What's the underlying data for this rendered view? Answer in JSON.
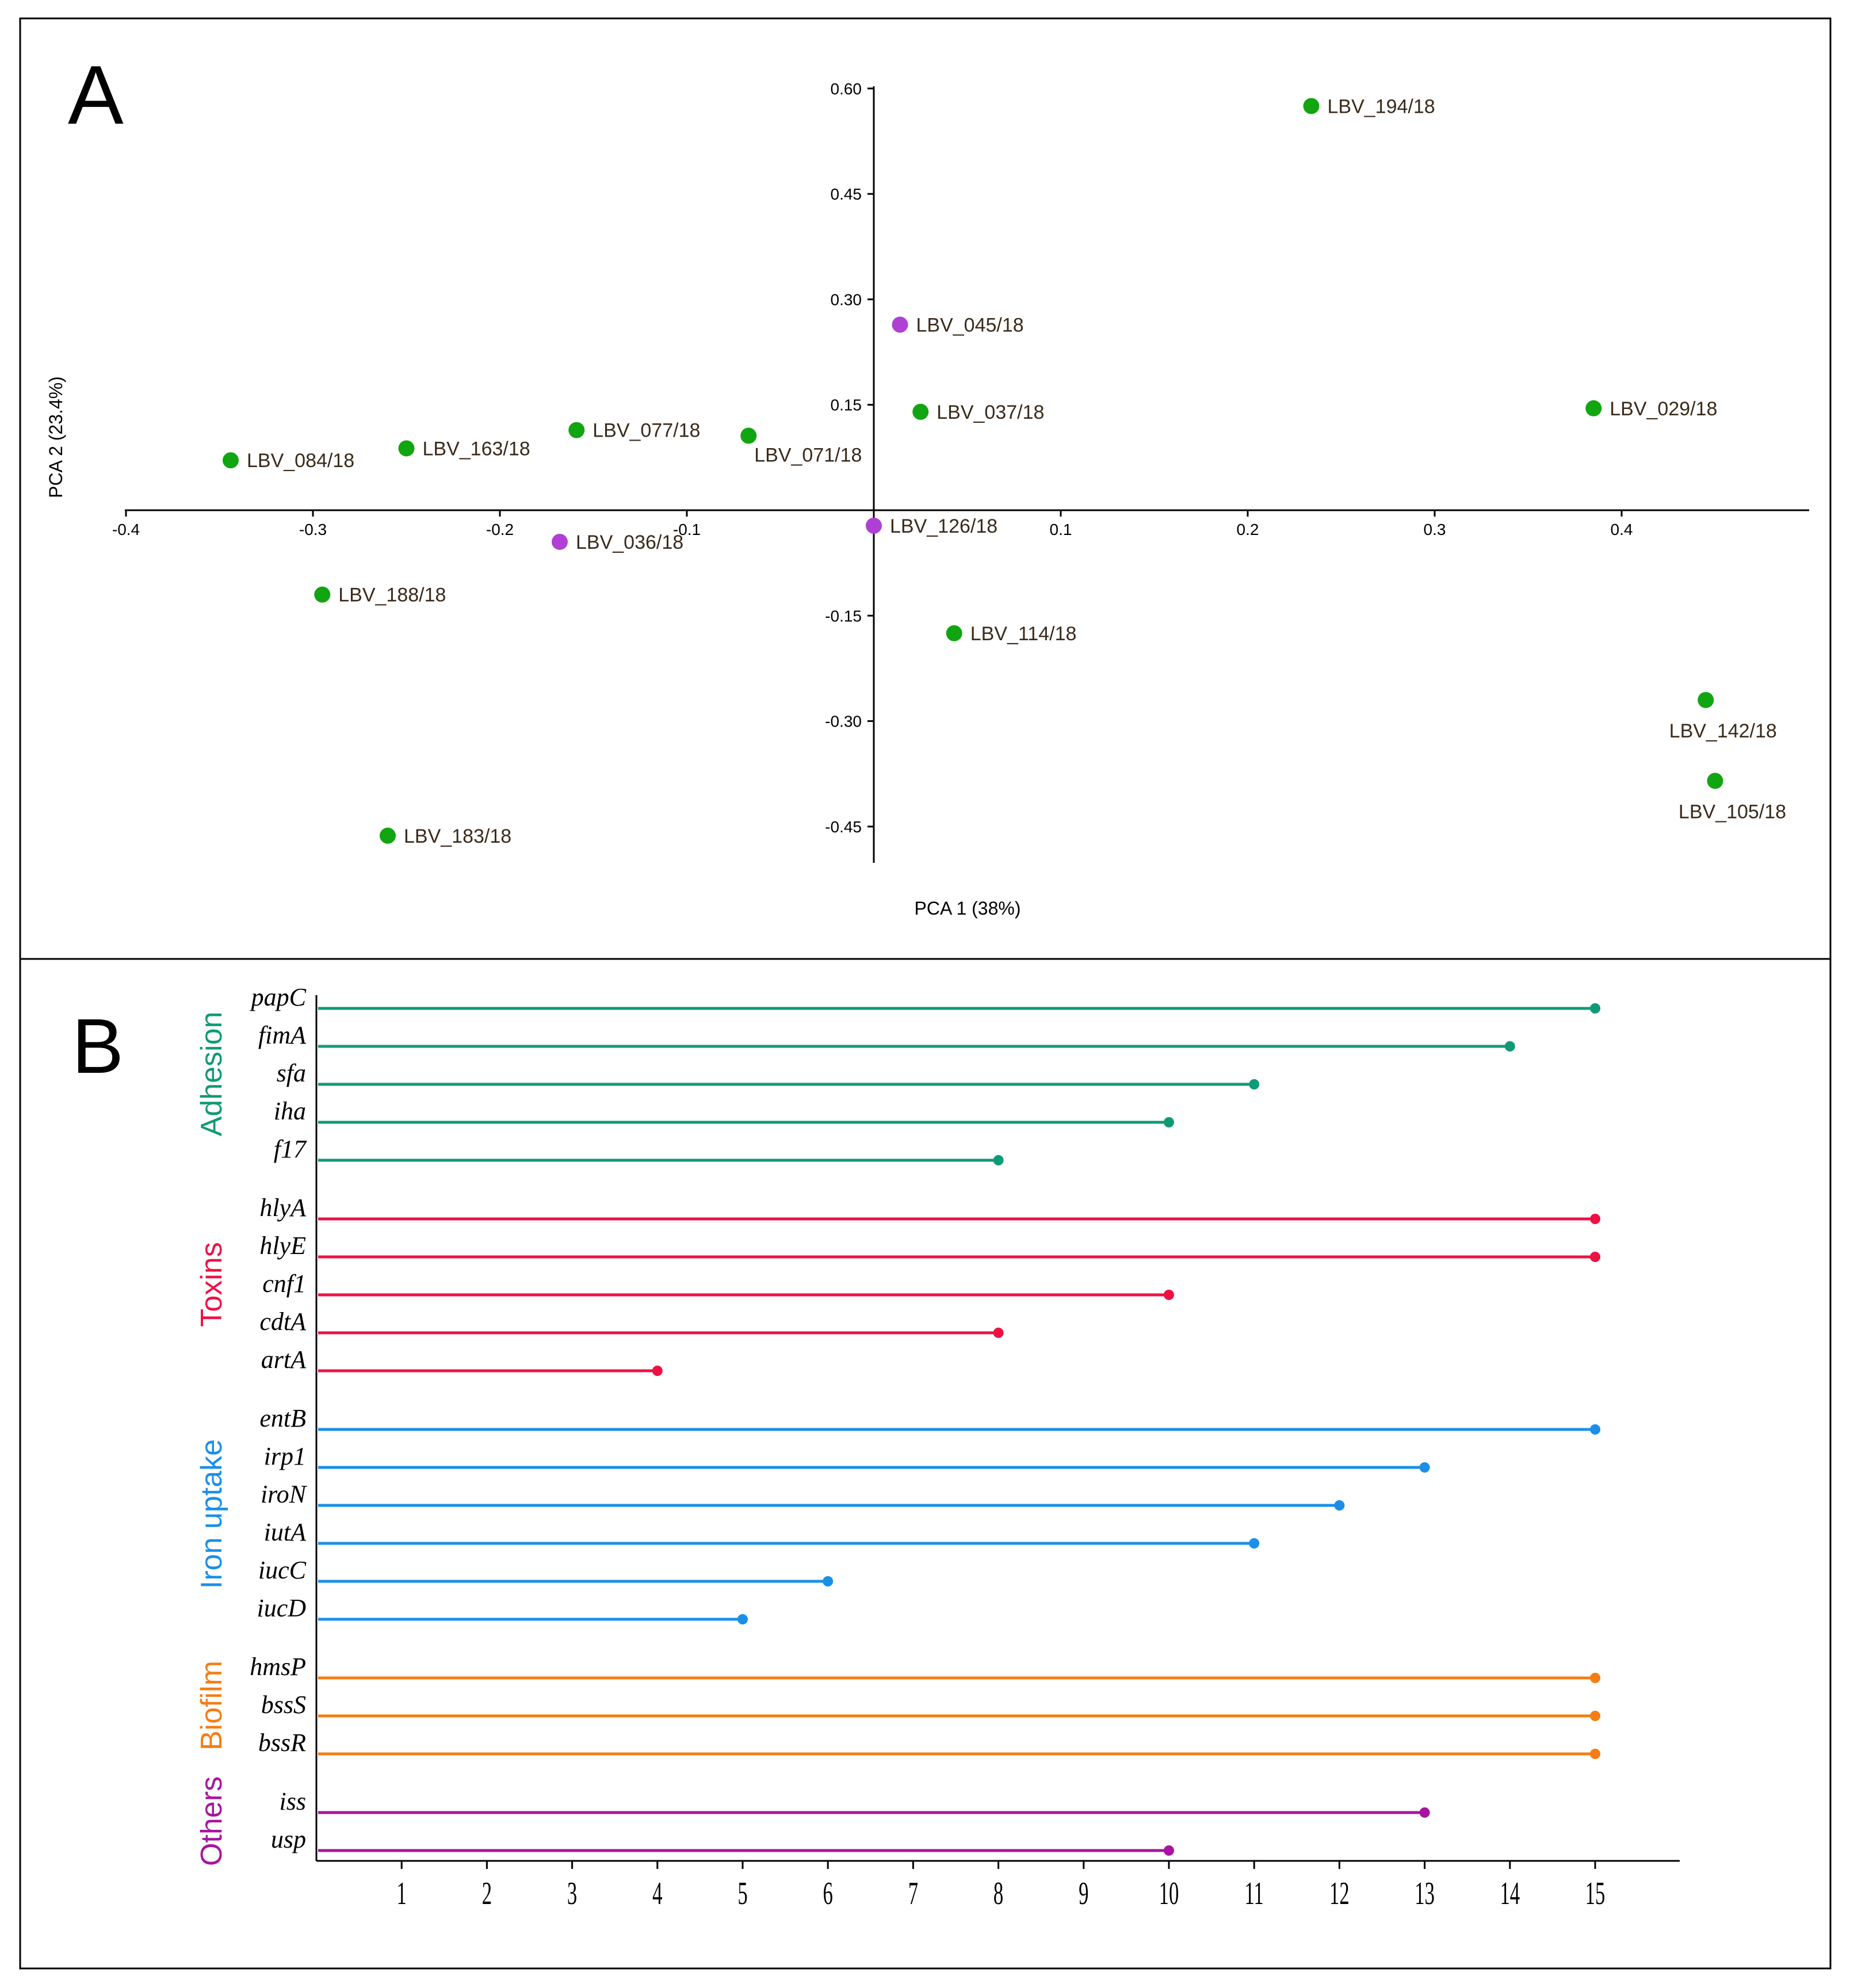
{
  "chart_data": [
    {
      "type": "scatter",
      "panel_label": "A",
      "xlabel": "PCA 1 (38%)",
      "ylabel": "PCA 2 (23.4%)",
      "xlim": [
        -0.4,
        0.5
      ],
      "ylim": [
        -0.5,
        0.6
      ],
      "x_ticks": [
        -0.4,
        -0.3,
        -0.2,
        -0.1,
        0.1,
        0.2,
        0.3,
        0.4
      ],
      "x_tick_labels": [
        "-0.4",
        "-0.3",
        "-0.2",
        "-0.1",
        "0.1",
        "0.2",
        "0.3",
        "0.4"
      ],
      "y_ticks": [
        0.6,
        0.45,
        0.3,
        0.15,
        -0.15,
        -0.3,
        -0.45
      ],
      "y_tick_labels": [
        "0.60",
        "0.45",
        "0.30",
        "0.15",
        "-0.15",
        "-0.30",
        "-0.45"
      ],
      "colors": {
        "green": "#11a511",
        "purple": "#b03fd6"
      },
      "points": [
        {
          "label": "LBV_194/18",
          "x": 0.234,
          "y": 0.575,
          "color": "green",
          "pos": "right"
        },
        {
          "label": "LBV_045/18",
          "x": 0.014,
          "y": 0.264,
          "color": "purple",
          "pos": "right"
        },
        {
          "label": "LBV_029/18",
          "x": 0.385,
          "y": 0.145,
          "color": "green",
          "pos": "right"
        },
        {
          "label": "LBV_037/18",
          "x": 0.025,
          "y": 0.14,
          "color": "green",
          "pos": "right"
        },
        {
          "label": "LBV_077/18",
          "x": -0.159,
          "y": 0.114,
          "color": "green",
          "pos": "right"
        },
        {
          "label": "LBV_071/18",
          "x": -0.067,
          "y": 0.106,
          "color": "green",
          "pos": "below-right"
        },
        {
          "label": "LBV_163/18",
          "x": -0.25,
          "y": 0.088,
          "color": "green",
          "pos": "right"
        },
        {
          "label": "LBV_084/18",
          "x": -0.344,
          "y": 0.071,
          "color": "green",
          "pos": "right"
        },
        {
          "label": "LBV_126/18",
          "x": 0.0,
          "y": -0.022,
          "color": "purple",
          "pos": "right"
        },
        {
          "label": "LBV_036/18",
          "x": -0.168,
          "y": -0.045,
          "color": "purple",
          "pos": "right"
        },
        {
          "label": "LBV_188/18",
          "x": -0.295,
          "y": -0.12,
          "color": "green",
          "pos": "right"
        },
        {
          "label": "LBV_114/18",
          "x": 0.043,
          "y": -0.175,
          "color": "green",
          "pos": "right"
        },
        {
          "label": "LBV_142/18",
          "x": 0.445,
          "y": -0.27,
          "color": "green",
          "pos": "below"
        },
        {
          "label": "LBV_105/18",
          "x": 0.45,
          "y": -0.385,
          "color": "green",
          "pos": "below"
        },
        {
          "label": "LBV_183/18",
          "x": -0.26,
          "y": -0.463,
          "color": "green",
          "pos": "right"
        }
      ]
    },
    {
      "type": "bar",
      "orientation": "horizontal-lollipop",
      "panel_label": "B",
      "xlim": [
        0,
        16
      ],
      "x_ticks": [
        "1",
        "2",
        "3",
        "4",
        "5",
        "6",
        "7",
        "8",
        "9",
        "10",
        "11",
        "12",
        "13",
        "14",
        "15"
      ],
      "groups": [
        {
          "name": "Adhesion",
          "color": "#0f9a77",
          "genes": [
            {
              "gene": "papC",
              "value": 15
            },
            {
              "gene": "fimA",
              "value": 14
            },
            {
              "gene": "sfa",
              "value": 11
            },
            {
              "gene": "iha",
              "value": 10
            },
            {
              "gene": "f17",
              "value": 8
            }
          ]
        },
        {
          "name": "Toxins",
          "color": "#ee1144",
          "genes": [
            {
              "gene": "hlyA",
              "value": 15
            },
            {
              "gene": "hlyE",
              "value": 15
            },
            {
              "gene": "cnf1",
              "value": 10
            },
            {
              "gene": "cdtA",
              "value": 8
            },
            {
              "gene": "artA",
              "value": 4
            }
          ]
        },
        {
          "name": "Iron uptake",
          "color": "#1a8fe8",
          "genes": [
            {
              "gene": "entB",
              "value": 15
            },
            {
              "gene": "irp1",
              "value": 13
            },
            {
              "gene": "iroN",
              "value": 12
            },
            {
              "gene": "iutA",
              "value": 11
            },
            {
              "gene": "iucC",
              "value": 6
            },
            {
              "gene": "iucD",
              "value": 5
            }
          ]
        },
        {
          "name": "Biofilm",
          "color": "#f47d14",
          "genes": [
            {
              "gene": "hmsP",
              "value": 15
            },
            {
              "gene": "bssS",
              "value": 15
            },
            {
              "gene": "bssR",
              "value": 15
            }
          ]
        },
        {
          "name": "Others",
          "color": "#a8149e",
          "genes": [
            {
              "gene": "iss",
              "value": 13
            },
            {
              "gene": "usp",
              "value": 10
            }
          ]
        }
      ]
    }
  ]
}
